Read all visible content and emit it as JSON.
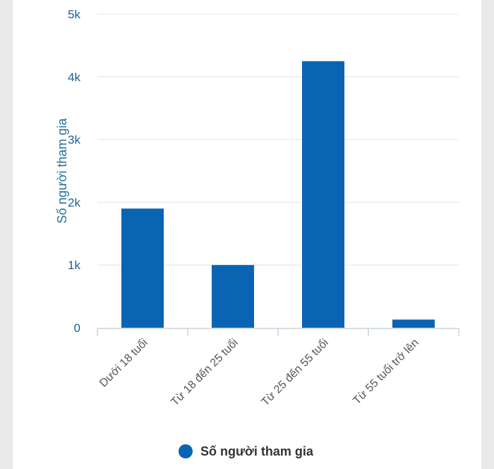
{
  "chart_data": {
    "type": "bar",
    "categories": [
      "Dưới 18 tuổi",
      "Từ 18 đến 25 tuổi",
      "Từ 25 đến 55 tuổi",
      "Từ 55 tuổi trở lên"
    ],
    "series": [
      {
        "name": "Số người tham gia",
        "values": [
          1900,
          1000,
          4250,
          130
        ],
        "color": "#0a64b4"
      }
    ],
    "ylabel": "Số người tham gia",
    "xlabel": "",
    "ylim": [
      0,
      5000
    ],
    "yticks": [
      0,
      1000,
      2000,
      3000,
      4000,
      5000
    ],
    "ytick_labels": [
      "0",
      "1k",
      "2k",
      "3k",
      "4k",
      "5k"
    ],
    "grid": true,
    "legend": {
      "position": "bottom-center",
      "label": "Số người tham gia"
    }
  }
}
